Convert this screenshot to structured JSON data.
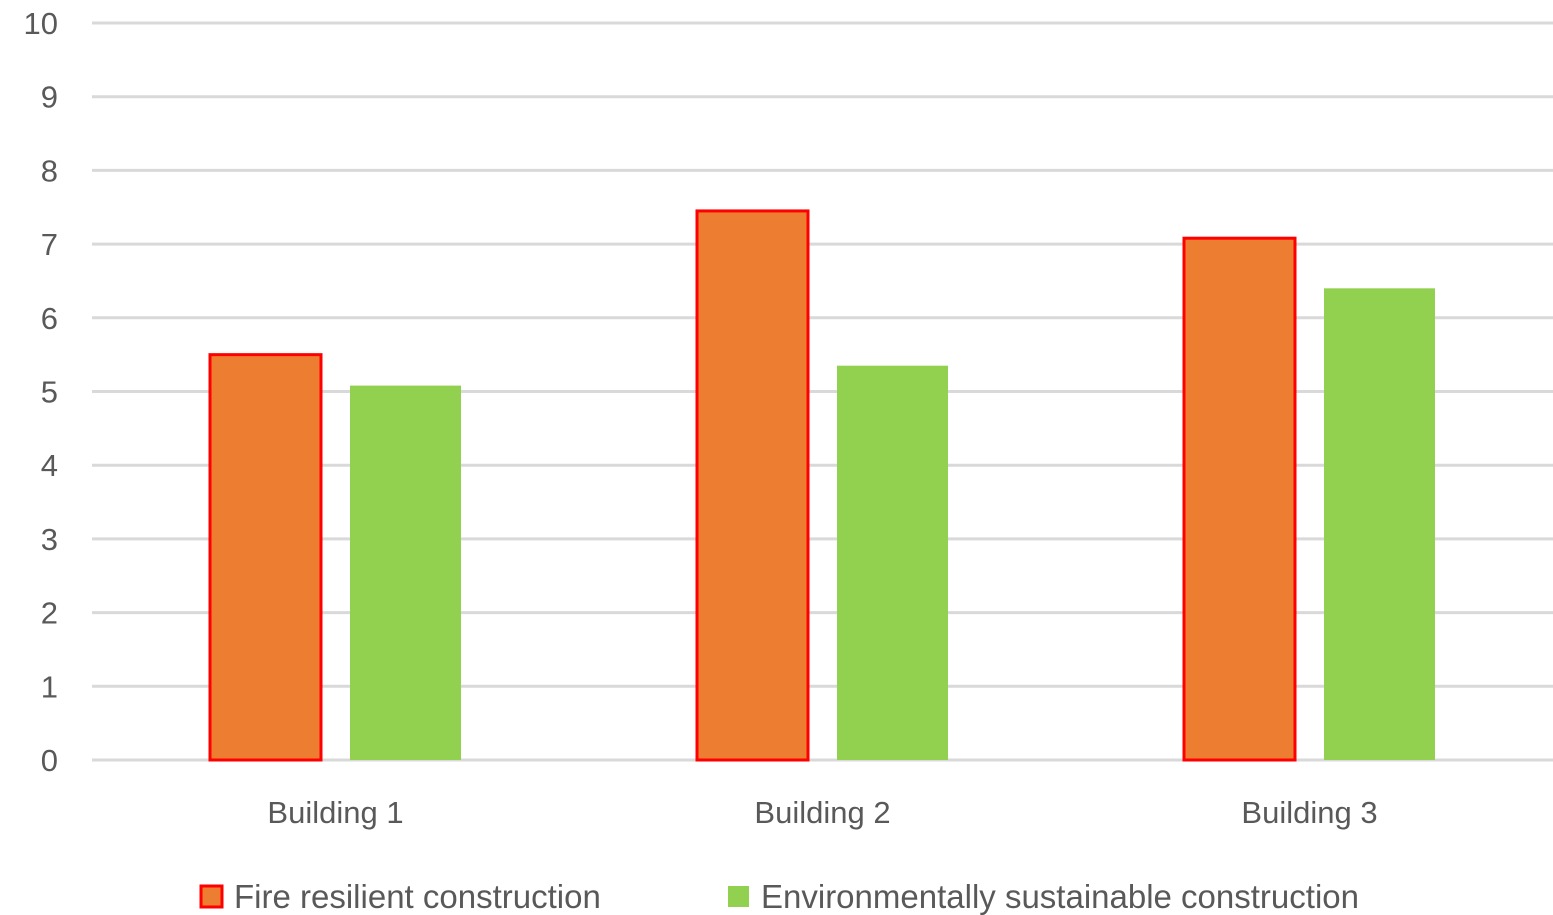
{
  "chart_data": {
    "type": "bar",
    "title": "",
    "xlabel": "",
    "ylabel": "",
    "categories": [
      "Building 1",
      "Building 2",
      "Building 3"
    ],
    "series": [
      {
        "name": "Fire resilient construction",
        "values": [
          5.5,
          7.45,
          7.08
        ],
        "fill": "#ED7D31",
        "stroke": "#FF0000"
      },
      {
        "name": "Environmentally sustainable construction",
        "values": [
          5.08,
          5.35,
          6.4
        ],
        "fill": "#92D050",
        "stroke": "none"
      }
    ],
    "ylim": [
      0,
      10
    ],
    "yticks": [
      "0",
      "1",
      "2",
      "3",
      "4",
      "5",
      "6",
      "7",
      "8",
      "9",
      "10"
    ],
    "grid": true,
    "gridline_color": "#D9D9D9",
    "legend_position": "bottom"
  }
}
